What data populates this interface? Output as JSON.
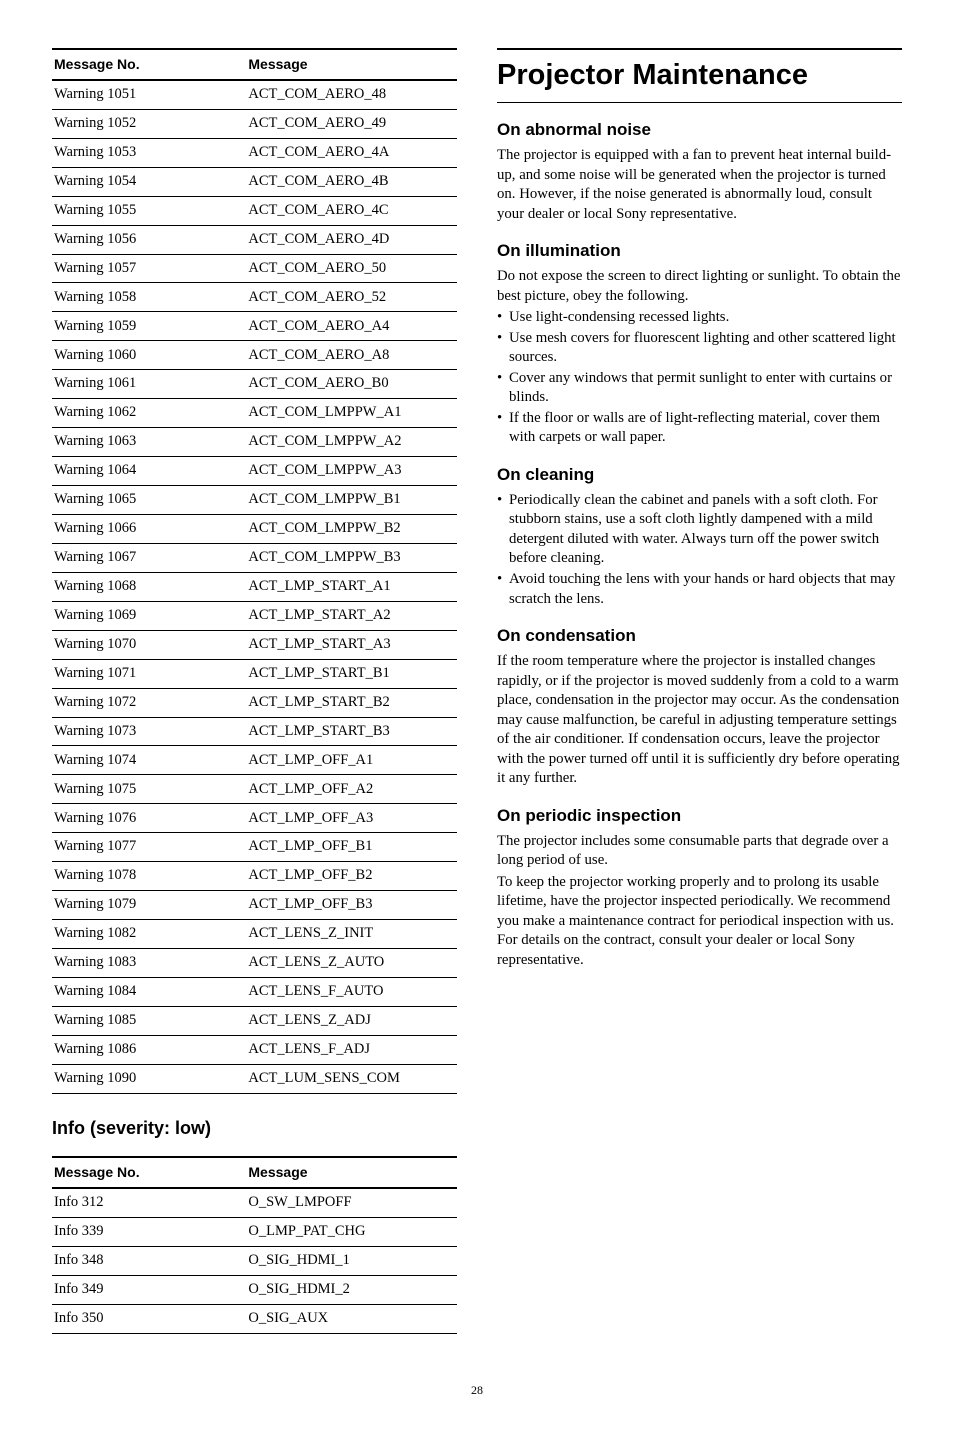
{
  "warnings": {
    "headers": [
      "Message No.",
      "Message"
    ],
    "rows": [
      [
        "Warning 1051",
        "ACT_COM_AERO_48"
      ],
      [
        "Warning 1052",
        "ACT_COM_AERO_49"
      ],
      [
        "Warning 1053",
        "ACT_COM_AERO_4A"
      ],
      [
        "Warning 1054",
        "ACT_COM_AERO_4B"
      ],
      [
        "Warning 1055",
        "ACT_COM_AERO_4C"
      ],
      [
        "Warning 1056",
        "ACT_COM_AERO_4D"
      ],
      [
        "Warning 1057",
        "ACT_COM_AERO_50"
      ],
      [
        "Warning 1058",
        "ACT_COM_AERO_52"
      ],
      [
        "Warning 1059",
        "ACT_COM_AERO_A4"
      ],
      [
        "Warning 1060",
        "ACT_COM_AERO_A8"
      ],
      [
        "Warning 1061",
        "ACT_COM_AERO_B0"
      ],
      [
        "Warning 1062",
        "ACT_COM_LMPPW_A1"
      ],
      [
        "Warning 1063",
        "ACT_COM_LMPPW_A2"
      ],
      [
        "Warning 1064",
        "ACT_COM_LMPPW_A3"
      ],
      [
        "Warning 1065",
        "ACT_COM_LMPPW_B1"
      ],
      [
        "Warning 1066",
        "ACT_COM_LMPPW_B2"
      ],
      [
        "Warning 1067",
        "ACT_COM_LMPPW_B3"
      ],
      [
        "Warning 1068",
        "ACT_LMP_START_A1"
      ],
      [
        "Warning 1069",
        "ACT_LMP_START_A2"
      ],
      [
        "Warning 1070",
        "ACT_LMP_START_A3"
      ],
      [
        "Warning 1071",
        "ACT_LMP_START_B1"
      ],
      [
        "Warning 1072",
        "ACT_LMP_START_B2"
      ],
      [
        "Warning 1073",
        "ACT_LMP_START_B3"
      ],
      [
        "Warning 1074",
        "ACT_LMP_OFF_A1"
      ],
      [
        "Warning 1075",
        "ACT_LMP_OFF_A2"
      ],
      [
        "Warning 1076",
        "ACT_LMP_OFF_A3"
      ],
      [
        "Warning 1077",
        "ACT_LMP_OFF_B1"
      ],
      [
        "Warning 1078",
        "ACT_LMP_OFF_B2"
      ],
      [
        "Warning 1079",
        "ACT_LMP_OFF_B3"
      ],
      [
        "Warning 1082",
        "ACT_LENS_Z_INIT"
      ],
      [
        "Warning 1083",
        "ACT_LENS_Z_AUTO"
      ],
      [
        "Warning 1084",
        "ACT_LENS_F_AUTO"
      ],
      [
        "Warning 1085",
        "ACT_LENS_Z_ADJ"
      ],
      [
        "Warning 1086",
        "ACT_LENS_F_ADJ"
      ],
      [
        "Warning 1090",
        "ACT_LUM_SENS_COM"
      ]
    ]
  },
  "info_section_title": "Info (severity: low)",
  "infos": {
    "headers": [
      "Message No.",
      "Message"
    ],
    "rows": [
      [
        "Info 312",
        "O_SW_LMPOFF"
      ],
      [
        "Info 339",
        "O_LMP_PAT_CHG"
      ],
      [
        "Info 348",
        "O_SIG_HDMI_1"
      ],
      [
        "Info 349",
        "O_SIG_HDMI_2"
      ],
      [
        "Info 350",
        "O_SIG_AUX"
      ]
    ]
  },
  "main_title": "Projector Maintenance",
  "sections": {
    "noise": {
      "head": "On abnormal noise",
      "body": "The projector is equipped with a fan to prevent heat internal build-up, and some noise will be generated when the projector is turned on. However, if the noise generated is abnormally loud, consult your dealer or local Sony representative."
    },
    "illum": {
      "head": "On illumination",
      "intro": "Do not expose the screen to direct lighting or sunlight. To obtain the best picture, obey the following.",
      "bullets": [
        "Use light-condensing recessed lights.",
        "Use mesh covers for fluorescent lighting and other scattered light sources.",
        "Cover any windows that permit sunlight to enter with curtains or blinds.",
        "If the floor or walls are of light-reflecting material, cover them with carpets or wall paper."
      ]
    },
    "clean": {
      "head": "On cleaning",
      "bullets": [
        "Periodically clean the cabinet and panels with a soft cloth. For stubborn stains, use a soft cloth lightly dampened with a mild detergent diluted with water. Always turn off the power switch before cleaning.",
        "Avoid touching the lens with your hands or hard objects that may scratch the lens."
      ]
    },
    "cond": {
      "head": "On condensation",
      "body": "If the room temperature where the projector is installed changes rapidly, or if the projector is moved suddenly from a cold to a warm place, condensation in the projector may occur. As the condensation may cause malfunction, be careful in adjusting temperature settings of the air conditioner. If condensation occurs, leave the projector with the power turned off until it is sufficiently dry before operating it any further."
    },
    "insp": {
      "head": "On periodic inspection",
      "body1": "The projector includes some consumable parts that degrade over a long period of use.",
      "body2": "To keep the projector working properly and to prolong its usable lifetime, have the projector inspected periodically. We recommend you make a maintenance contract for periodical inspection with us. For details on the contract, consult your dealer or local Sony representative."
    }
  },
  "page_no": "28"
}
